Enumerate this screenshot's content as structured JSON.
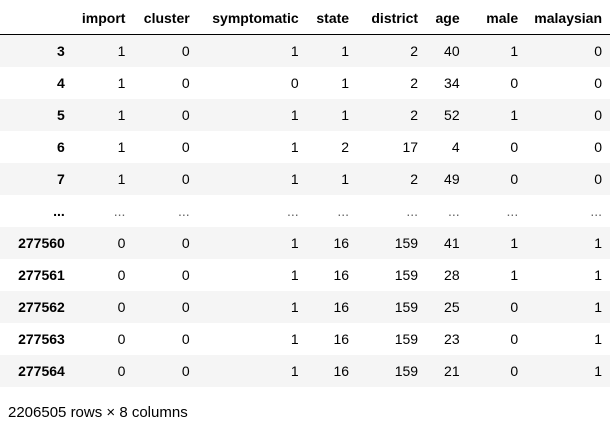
{
  "table": {
    "index_header": "",
    "columns": [
      "import",
      "cluster",
      "symptomatic",
      "state",
      "district",
      "age",
      "male",
      "malaysian"
    ],
    "rows": [
      {
        "index": "3",
        "values": [
          "1",
          "0",
          "1",
          "1",
          "2",
          "40",
          "1",
          "0"
        ]
      },
      {
        "index": "4",
        "values": [
          "1",
          "0",
          "0",
          "1",
          "2",
          "34",
          "0",
          "0"
        ]
      },
      {
        "index": "5",
        "values": [
          "1",
          "0",
          "1",
          "1",
          "2",
          "52",
          "1",
          "0"
        ]
      },
      {
        "index": "6",
        "values": [
          "1",
          "0",
          "1",
          "2",
          "17",
          "4",
          "0",
          "0"
        ]
      },
      {
        "index": "7",
        "values": [
          "1",
          "0",
          "1",
          "1",
          "2",
          "49",
          "0",
          "0"
        ]
      },
      {
        "index": "...",
        "values": [
          "...",
          "...",
          "...",
          "...",
          "...",
          "...",
          "...",
          "..."
        ]
      },
      {
        "index": "277560",
        "values": [
          "0",
          "0",
          "1",
          "16",
          "159",
          "41",
          "1",
          "1"
        ]
      },
      {
        "index": "277561",
        "values": [
          "0",
          "0",
          "1",
          "16",
          "159",
          "28",
          "1",
          "1"
        ]
      },
      {
        "index": "277562",
        "values": [
          "0",
          "0",
          "1",
          "16",
          "159",
          "25",
          "0",
          "1"
        ]
      },
      {
        "index": "277563",
        "values": [
          "0",
          "0",
          "1",
          "16",
          "159",
          "23",
          "0",
          "1"
        ]
      },
      {
        "index": "277564",
        "values": [
          "0",
          "0",
          "1",
          "16",
          "159",
          "21",
          "0",
          "1"
        ]
      }
    ]
  },
  "summary": "2206505 rows × 8 columns",
  "colors": {
    "stripe": "#f5f5f5",
    "border": "#000000",
    "text": "#000000"
  }
}
